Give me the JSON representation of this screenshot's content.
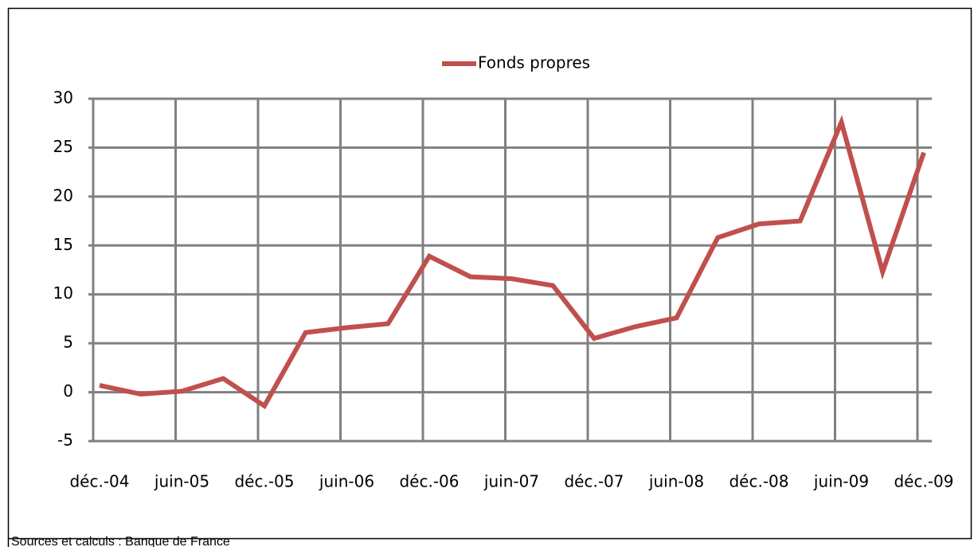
{
  "chart_data": {
    "type": "line",
    "legend": "top",
    "grid": true,
    "categories": [
      "déc.-04",
      null,
      "juin-05",
      null,
      "déc.-05",
      null,
      "juin-06",
      null,
      "déc.-06",
      null,
      "juin-07",
      null,
      "déc.-07",
      null,
      "juin-08",
      null,
      "déc.-08",
      null,
      "juin-09",
      null,
      "déc.-09"
    ],
    "series": [
      {
        "name": "Fonds propres",
        "color": "#c0504d",
        "values": [
          0.7,
          -0.2,
          0.1,
          1.4,
          -1.4,
          6.1,
          6.6,
          7.0,
          13.9,
          11.8,
          11.6,
          10.9,
          5.5,
          6.7,
          7.6,
          15.8,
          17.2,
          17.5,
          27.6,
          12.3,
          24.5
        ]
      }
    ],
    "ylim": [
      -5,
      30
    ],
    "yticks": [
      -5,
      0,
      5,
      10,
      15,
      20,
      25,
      30
    ],
    "source": "Sources et calculs : Banque de France"
  }
}
